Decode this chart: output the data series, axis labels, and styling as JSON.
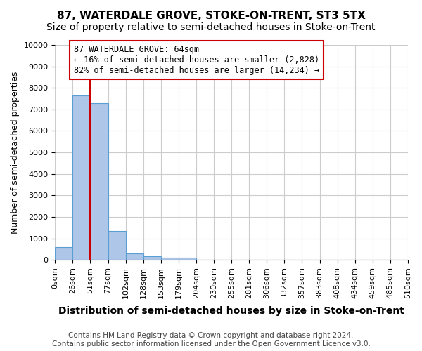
{
  "title": "87, WATERDALE GROVE, STOKE-ON-TRENT, ST3 5TX",
  "subtitle": "Size of property relative to semi-detached houses in Stoke-on-Trent",
  "xlabel": "Distribution of semi-detached houses by size in Stoke-on-Trent",
  "ylabel": "Number of semi-detached properties",
  "footnote": "Contains HM Land Registry data © Crown copyright and database right 2024.\nContains public sector information licensed under the Open Government Licence v3.0.",
  "bin_edges": [
    "0sqm",
    "26sqm",
    "51sqm",
    "77sqm",
    "102sqm",
    "128sqm",
    "153sqm",
    "179sqm",
    "204sqm",
    "230sqm",
    "255sqm",
    "281sqm",
    "306sqm",
    "332sqm",
    "357sqm",
    "383sqm",
    "408sqm",
    "434sqm",
    "459sqm",
    "485sqm",
    "510sqm"
  ],
  "bar_values": [
    580,
    7650,
    7280,
    1360,
    300,
    170,
    100,
    90,
    0,
    0,
    0,
    0,
    0,
    0,
    0,
    0,
    0,
    0,
    0,
    0
  ],
  "bar_color": "#aec6e8",
  "bar_edge_color": "#5a9fd4",
  "red_line_x": 1.5,
  "annotation_text": "87 WATERDALE GROVE: 64sqm\n← 16% of semi-detached houses are smaller (2,828)\n82% of semi-detached houses are larger (14,234) →",
  "annotation_box_color": "#ffffff",
  "annotation_box_edge": "#cc0000",
  "red_line_color": "#cc0000",
  "ylim": [
    0,
    10000
  ],
  "yticks": [
    0,
    1000,
    2000,
    3000,
    4000,
    5000,
    6000,
    7000,
    8000,
    9000,
    10000
  ],
  "background_color": "#ffffff",
  "grid_color": "#cccccc",
  "title_fontsize": 11,
  "subtitle_fontsize": 10,
  "xlabel_fontsize": 10,
  "ylabel_fontsize": 9,
  "tick_fontsize": 8,
  "annotation_fontsize": 8.5,
  "footnote_fontsize": 7.5
}
